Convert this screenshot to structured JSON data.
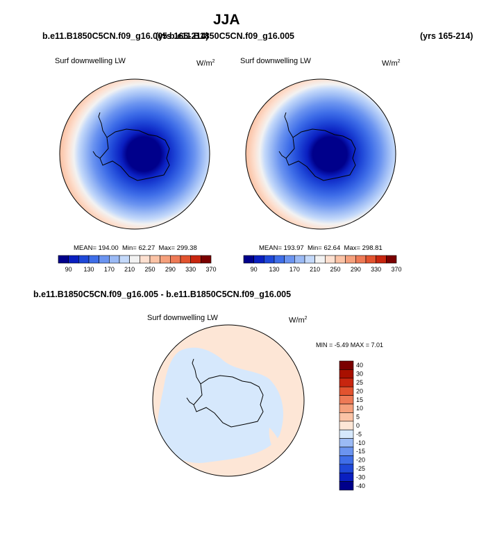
{
  "page_title": "JJA",
  "header": {
    "case_left": "b.e11.B1850C5CN.f09_g16.005",
    "years_left": "(yrs 165-214)",
    "case_right": "b.e11.B1850C5CN.f09_g16.005",
    "years_right": "(yrs 165-214)"
  },
  "diff_title": "b.e11.B1850C5CN.f09_g16.005 - b.e11.B1850C5CN.f09_g16.005",
  "colors": {
    "abs_palette": [
      "#00008b",
      "#0a1fc0",
      "#1f48d8",
      "#3f6ee8",
      "#6b94f0",
      "#9bbaf5",
      "#c4d9fa",
      "#f2f2f2",
      "#fde0d0",
      "#fbc3a6",
      "#f5a07c",
      "#ee7a56",
      "#e2532f",
      "#c8260f",
      "#7a0000"
    ],
    "diff_palette": [
      "#00008b",
      "#0a1fc0",
      "#1f48d8",
      "#3f6ee8",
      "#6b94f0",
      "#9bbaf5",
      "#d6e8fc",
      "#fde6d6",
      "#fbc3a6",
      "#f5a07c",
      "#ee7a56",
      "#e2532f",
      "#c8260f",
      "#a81000",
      "#7a0000"
    ],
    "coast": "#000000"
  },
  "chart_data": [
    {
      "type": "polar-contour",
      "panel": "left",
      "title": "Surf downwelling LW",
      "units": "W/m",
      "units_exp": "2",
      "stats": {
        "mean_label": "MEAN= 194.00",
        "min_label": "Min=  62.27",
        "max_label": "Max= 299.38"
      },
      "mean": 194.0,
      "min": 62.27,
      "max": 299.38,
      "colorbar_levels": [
        90,
        130,
        170,
        210,
        250,
        290,
        330,
        370
      ],
      "colorbar_ticks": [
        "90",
        "130",
        "170",
        "210",
        "250",
        "290",
        "330",
        "370"
      ]
    },
    {
      "type": "polar-contour",
      "panel": "right",
      "title": "Surf downwelling LW",
      "units": "W/m",
      "units_exp": "2",
      "stats": {
        "mean_label": "MEAN= 193.97",
        "min_label": "Min=  62.64",
        "max_label": "Max= 298.81"
      },
      "mean": 193.97,
      "min": 62.64,
      "max": 298.81,
      "colorbar_levels": [
        90,
        130,
        170,
        210,
        250,
        290,
        330,
        370
      ],
      "colorbar_ticks": [
        "90",
        "130",
        "170",
        "210",
        "250",
        "290",
        "330",
        "370"
      ]
    },
    {
      "type": "polar-contour-difference",
      "panel": "difference",
      "title": "Surf downwelling LW",
      "units": "W/m",
      "units_exp": "2",
      "stats_label": "MIN =  -5.49 MAX =   7.01",
      "min": -5.49,
      "max": 7.01,
      "colorbar_levels": [
        40,
        30,
        25,
        20,
        15,
        10,
        5,
        0,
        -5,
        -10,
        -15,
        -20,
        -25,
        -30,
        -40
      ],
      "colorbar_ticks": [
        "40",
        "30",
        "25",
        "20",
        "15",
        "10",
        "5",
        "0",
        "-5",
        "-10",
        "-15",
        "-20",
        "-25",
        "-30",
        "-40"
      ]
    }
  ]
}
